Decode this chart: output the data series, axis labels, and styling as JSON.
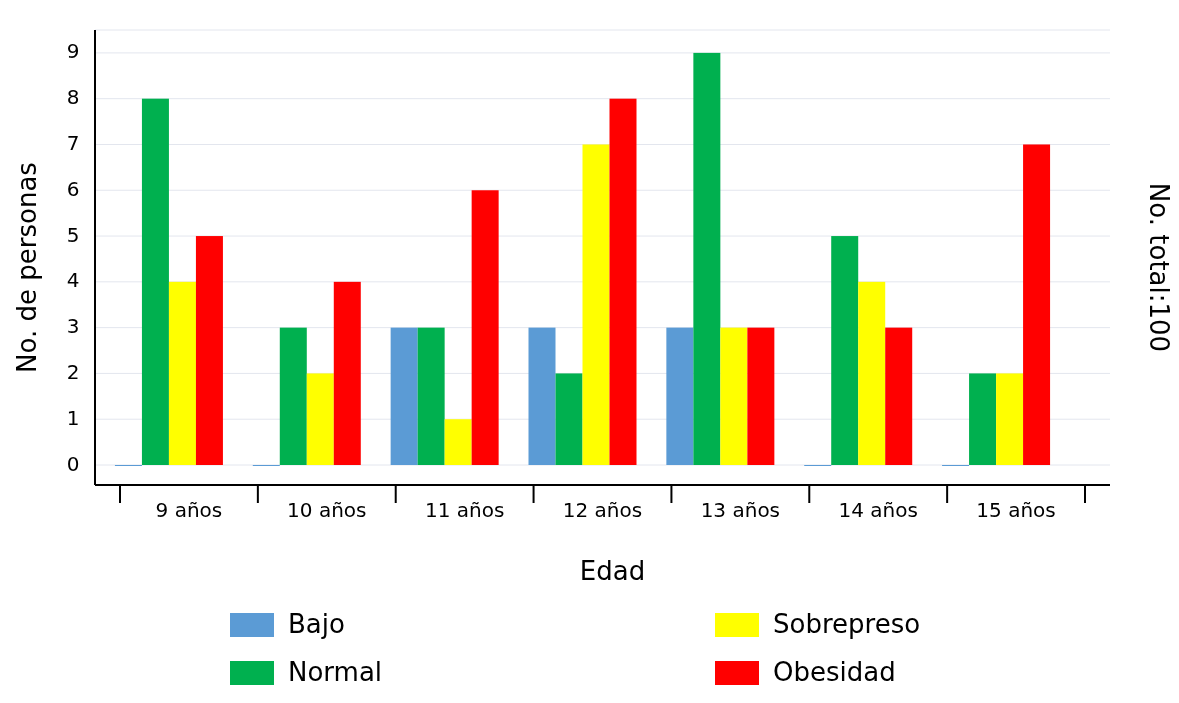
{
  "chart_data": {
    "type": "bar",
    "xlabel": "Edad",
    "ylabel": "No. de personas",
    "annotations": [
      "No. total:100"
    ],
    "categories": [
      "9 años",
      "10 años",
      "11 años",
      "12 años",
      "13 años",
      "14 años",
      "15 años"
    ],
    "series": [
      {
        "name": "Bajo",
        "color": "#5b9bd5",
        "values": [
          0,
          0,
          3,
          3,
          3,
          0,
          0
        ]
      },
      {
        "name": "Normal",
        "color": "#00b04f",
        "values": [
          8,
          3,
          3,
          2,
          9,
          5,
          2
        ]
      },
      {
        "name": "Sobrepreso",
        "color": "#ffff00",
        "values": [
          4,
          2,
          1,
          7,
          3,
          4,
          2
        ]
      },
      {
        "name": "Obesidad",
        "color": "#ff0000",
        "values": [
          5,
          4,
          6,
          8,
          3,
          3,
          7
        ]
      }
    ],
    "ylim": [
      0,
      9.5
    ],
    "yticks": [
      0,
      1,
      2,
      3,
      4,
      5,
      6,
      7,
      8,
      9
    ],
    "grid": "y",
    "legend": "bottom"
  }
}
